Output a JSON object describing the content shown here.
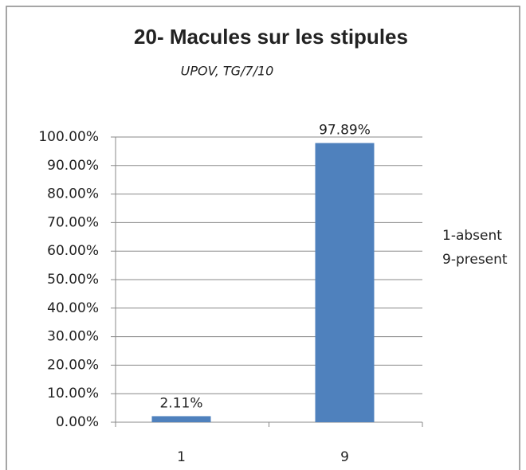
{
  "chart_data": {
    "type": "bar",
    "title": "20- Macules sur les stipules",
    "subtitle": "UPOV, TG/7/10",
    "annotations": [
      "1-absent",
      "9-present"
    ],
    "categories": [
      "1",
      "9"
    ],
    "values": [
      2.11,
      97.89
    ],
    "value_labels": [
      "2.11%",
      "97.89%"
    ],
    "color": "#4f81bd",
    "ylim": [
      0,
      100
    ],
    "yticks": [
      {
        "value": 0,
        "label": "0.00%"
      },
      {
        "value": 10,
        "label": "10.00%"
      },
      {
        "value": 20,
        "label": "20.00%"
      },
      {
        "value": 30,
        "label": "30.00%"
      },
      {
        "value": 40,
        "label": "40.00%"
      },
      {
        "value": 50,
        "label": "50.00%"
      },
      {
        "value": 60,
        "label": "60.00%"
      },
      {
        "value": 70,
        "label": "70.00%"
      },
      {
        "value": 80,
        "label": "80.00%"
      },
      {
        "value": 90,
        "label": "90.00%"
      },
      {
        "value": 100,
        "label": "100.00%"
      }
    ],
    "grid": true
  }
}
